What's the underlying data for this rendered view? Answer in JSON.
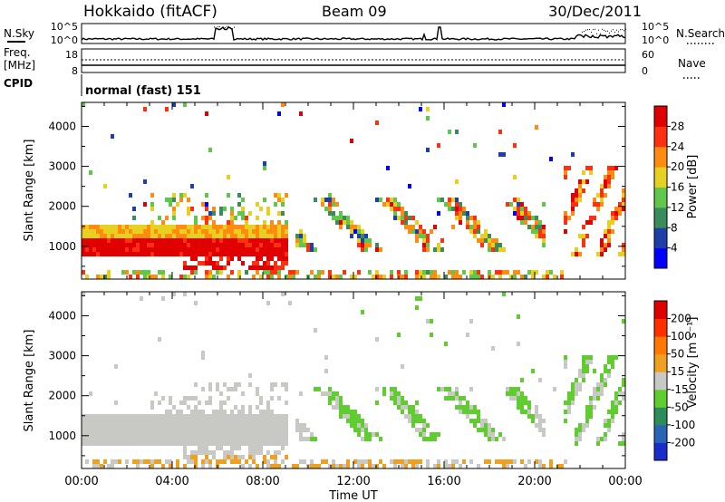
{
  "header": {
    "title": "Hokkaido (fitACF)",
    "beam": "Beam 09",
    "date": "30/Dec/2011"
  },
  "noise_panel": {
    "left_label": "N.Sky",
    "right_label": "N.Search",
    "ticks": [
      "10^5",
      "10^0"
    ]
  },
  "freq_panel": {
    "left_label_1": "Freq.",
    "left_label_2": "[MHz]",
    "left_ticks": [
      "18",
      "8"
    ],
    "right_label": "Nave",
    "right_ticks": [
      "60",
      "0"
    ]
  },
  "cpid_panel": {
    "label": "CPID",
    "mode_text": "normal (fast) 151"
  },
  "x_axis": {
    "label": "Time UT",
    "ticks": [
      "00:00",
      "04:00",
      "08:00",
      "12:00",
      "16:00",
      "20:00",
      "00:00"
    ]
  },
  "chart_data": [
    {
      "type": "heatmap",
      "name": "power",
      "x_range_hours": [
        0,
        24
      ],
      "ylabel": "Slant Range [km]",
      "y_ticks": [
        "1000",
        "2000",
        "3000",
        "4000"
      ],
      "ylim": [
        180,
        4600
      ],
      "colorbar": {
        "label": "Power [dB]",
        "tick_labels": [
          "4",
          "8",
          "12",
          "16",
          "20",
          "24",
          "28"
        ],
        "colors": [
          "#0000ff",
          "#1e3fa8",
          "#3a8c5a",
          "#5fc84a",
          "#e8d020",
          "#ff8c10",
          "#ff3010",
          "#e00000"
        ]
      }
    },
    {
      "type": "heatmap",
      "name": "velocity",
      "x_range_hours": [
        0,
        24
      ],
      "ylabel": "Slant Range [km]",
      "y_ticks": [
        "1000",
        "2000",
        "3000",
        "4000"
      ],
      "ylim": [
        180,
        4600
      ],
      "colorbar": {
        "label": "Velocity [m s⁻¹]",
        "tick_labels": [
          "200",
          "100",
          "50",
          "15",
          "-15",
          "-50",
          "-100",
          "-200"
        ],
        "colors": [
          "#1a2ccc",
          "#2a64b8",
          "#2e8c5a",
          "#5fcc30",
          "#c8c8c4",
          "#f0a020",
          "#ff7800",
          "#ff3000",
          "#e00000"
        ]
      }
    }
  ]
}
